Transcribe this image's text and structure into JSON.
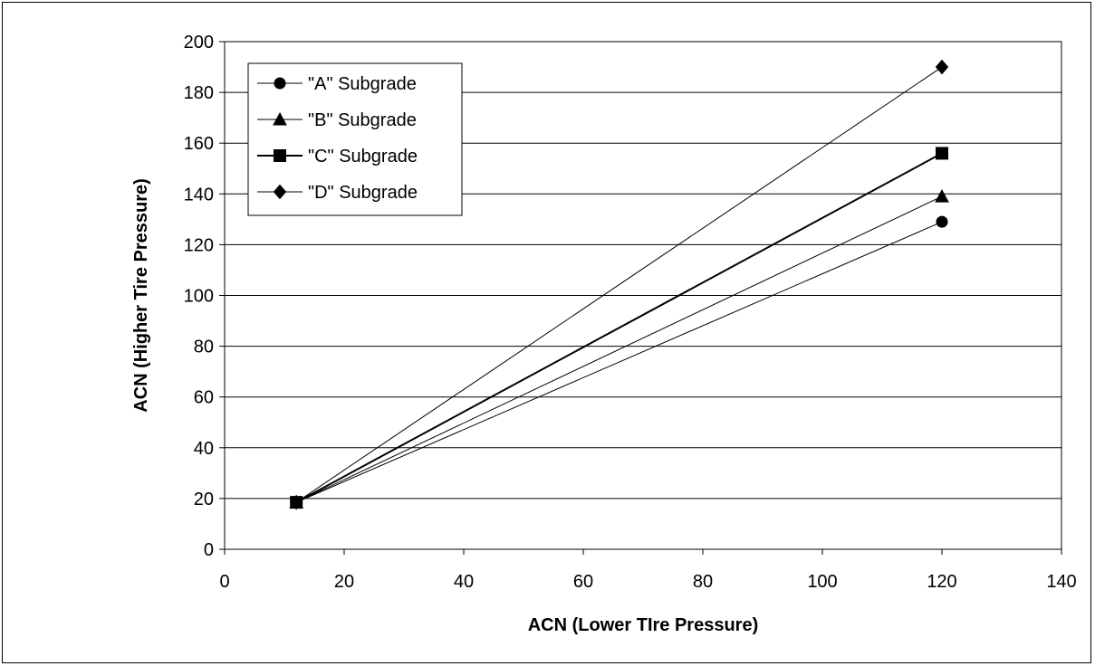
{
  "chart_data": {
    "type": "line",
    "title": "",
    "xlabel": "ACN (Lower TIre Pressure)",
    "ylabel": "ACN (Higher Tire Pressure)",
    "xlim": [
      0,
      140
    ],
    "ylim": [
      0,
      200
    ],
    "xticks": [
      0,
      20,
      40,
      60,
      80,
      100,
      120,
      140
    ],
    "yticks": [
      0,
      20,
      40,
      60,
      80,
      100,
      120,
      140,
      160,
      180,
      200
    ],
    "grid": "horizontal",
    "legend_position": "top-left",
    "series": [
      {
        "name": "\"A\" Subgrade",
        "marker": "circle",
        "x": [
          12,
          120
        ],
        "y": [
          18.5,
          129
        ],
        "stroke_color": "#000000"
      },
      {
        "name": "\"B\" Subgrade",
        "marker": "triangle",
        "x": [
          12,
          120
        ],
        "y": [
          18.5,
          139
        ],
        "stroke_color": "#000000"
      },
      {
        "name": "\"C\" Subgrade",
        "marker": "square",
        "x": [
          12,
          120
        ],
        "y": [
          18.5,
          156
        ],
        "stroke_color": "#000000"
      },
      {
        "name": "\"D\" Subgrade",
        "marker": "diamond",
        "x": [
          12,
          120
        ],
        "y": [
          18.5,
          190
        ],
        "stroke_color": "#000000"
      }
    ]
  }
}
